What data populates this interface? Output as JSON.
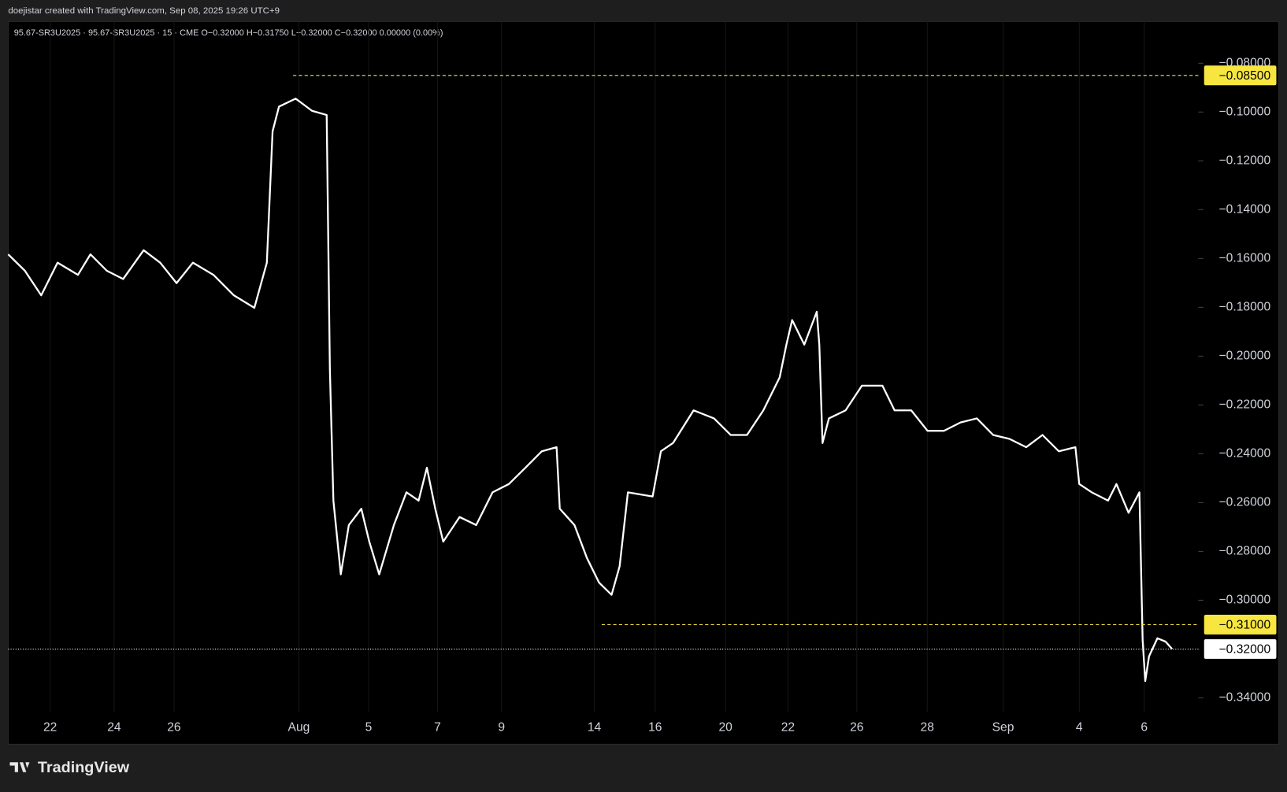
{
  "chart_data": {
    "type": "line",
    "caption": "doejistar created with TradingView.com, Sep 08, 2025 19:26 UTC+9",
    "title": "95.67-SR3U2025 · 95.67-SR3U2025 · 15 · CME  O−0.32000  H−0.31750  L−0.32000  C−0.32000  0.00000 (0.00%)",
    "brand": "TradingView",
    "xlim": [
      -1.31,
      35.87
    ],
    "ylim": [
      -0.3459,
      -0.0629
    ],
    "grid": true,
    "xticks": [
      {
        "value": 0,
        "label": "22"
      },
      {
        "value": 2,
        "label": "24"
      },
      {
        "value": 3.87,
        "label": "26"
      },
      {
        "value": 7.77,
        "label": "Aug"
      },
      {
        "value": 9.95,
        "label": "5"
      },
      {
        "value": 12.1,
        "label": "7"
      },
      {
        "value": 14.1,
        "label": "9"
      },
      {
        "value": 17.0,
        "label": "14"
      },
      {
        "value": 18.9,
        "label": "16"
      },
      {
        "value": 21.1,
        "label": "20"
      },
      {
        "value": 23.05,
        "label": "22"
      },
      {
        "value": 25.2,
        "label": "26"
      },
      {
        "value": 27.4,
        "label": "28"
      },
      {
        "value": 29.77,
        "label": "Sep"
      },
      {
        "value": 32.15,
        "label": "4"
      },
      {
        "value": 34.18,
        "label": "6"
      }
    ],
    "yticks": [
      {
        "value": -0.08,
        "label": "−0.08000"
      },
      {
        "value": -0.1,
        "label": "−0.10000"
      },
      {
        "value": -0.12,
        "label": "−0.12000"
      },
      {
        "value": -0.14,
        "label": "−0.14000"
      },
      {
        "value": -0.16,
        "label": "−0.16000"
      },
      {
        "value": -0.18,
        "label": "−0.18000"
      },
      {
        "value": -0.2,
        "label": "−0.20000"
      },
      {
        "value": -0.22,
        "label": "−0.22000"
      },
      {
        "value": -0.24,
        "label": "−0.24000"
      },
      {
        "value": -0.26,
        "label": "−0.26000"
      },
      {
        "value": -0.28,
        "label": "−0.28000"
      },
      {
        "value": -0.3,
        "label": "−0.30000"
      },
      {
        "value": -0.34,
        "label": "−0.34000"
      }
    ],
    "series": [
      {
        "name": "95.67-SR3U2025",
        "color": "#ffffff",
        "x": [
          -1.31,
          -0.79,
          -0.28,
          0.23,
          0.87,
          1.26,
          1.77,
          2.28,
          2.92,
          3.44,
          3.95,
          4.46,
          5.1,
          5.74,
          6.38,
          6.77,
          6.95,
          7.15,
          7.67,
          8.18,
          8.64,
          8.74,
          8.85,
          9.08,
          9.33,
          9.72,
          9.97,
          10.28,
          10.74,
          11.13,
          11.51,
          11.77,
          12.03,
          12.28,
          12.79,
          13.31,
          13.82,
          14.33,
          14.85,
          15.36,
          15.82,
          15.92,
          16.38,
          16.77,
          17.15,
          17.54,
          17.79,
          18.05,
          18.82,
          19.08,
          19.46,
          20.1,
          20.74,
          21.26,
          21.77,
          22.28,
          22.79,
          23.0,
          23.18,
          23.56,
          23.95,
          24.03,
          24.13,
          24.33,
          24.85,
          25.36,
          26.0,
          26.38,
          26.9,
          27.41,
          27.92,
          28.44,
          28.95,
          29.46,
          29.97,
          30.49,
          31.0,
          31.51,
          32.03,
          32.15,
          32.54,
          33.05,
          33.31,
          33.69,
          34.03,
          34.13,
          34.21,
          34.33,
          34.59,
          34.85,
          35.05
        ],
        "values": [
          -0.1583,
          -0.165,
          -0.1751,
          -0.1617,
          -0.1667,
          -0.1583,
          -0.165,
          -0.1684,
          -0.1566,
          -0.1617,
          -0.1701,
          -0.1617,
          -0.1667,
          -0.1751,
          -0.1802,
          -0.1617,
          -0.1079,
          -0.0978,
          -0.0945,
          -0.0995,
          -0.1012,
          -0.2054,
          -0.2592,
          -0.2894,
          -0.2692,
          -0.2625,
          -0.276,
          -0.2894,
          -0.2692,
          -0.2558,
          -0.2592,
          -0.2457,
          -0.2625,
          -0.276,
          -0.2659,
          -0.2692,
          -0.2558,
          -0.2524,
          -0.2457,
          -0.239,
          -0.2373,
          -0.2625,
          -0.2692,
          -0.2827,
          -0.2928,
          -0.2978,
          -0.2861,
          -0.2558,
          -0.2575,
          -0.239,
          -0.2356,
          -0.2222,
          -0.2255,
          -0.2323,
          -0.2323,
          -0.2222,
          -0.2087,
          -0.1953,
          -0.1852,
          -0.1953,
          -0.1818,
          -0.1953,
          -0.2356,
          -0.2255,
          -0.2222,
          -0.2121,
          -0.2121,
          -0.2222,
          -0.2222,
          -0.2306,
          -0.2306,
          -0.2272,
          -0.2255,
          -0.2323,
          -0.2339,
          -0.2373,
          -0.2323,
          -0.239,
          -0.2373,
          -0.2524,
          -0.2558,
          -0.2592,
          -0.2524,
          -0.2642,
          -0.2558,
          -0.3163,
          -0.3331,
          -0.323,
          -0.3156,
          -0.317,
          -0.32
        ]
      }
    ],
    "price_lines": [
      {
        "value": -0.085,
        "label": "−0.08500",
        "x": 7.59,
        "color": "#f7e640",
        "style": "dashed"
      },
      {
        "value": -0.31,
        "label": "−0.31000",
        "x": 17.23,
        "color": "#f7e640",
        "style": "dashed"
      },
      {
        "value": -0.32,
        "label": "−0.32000",
        "x": -1.31,
        "color": "#ffffff",
        "style": "dotted"
      }
    ]
  }
}
